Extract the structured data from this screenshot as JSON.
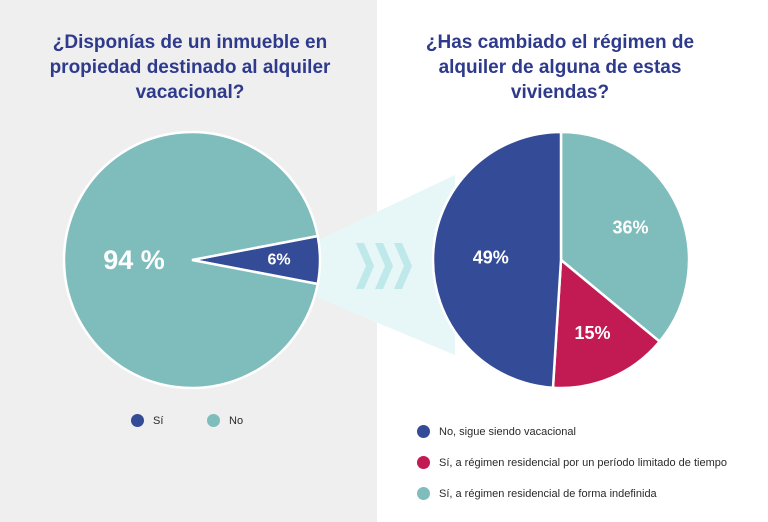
{
  "colors": {
    "navy": "#344b98",
    "teal": "#7fbdbc",
    "crimson": "#c21a52",
    "title": "#2e3a8c",
    "chevron": "#bfe8ea",
    "band": "#e7f6f7"
  },
  "left": {
    "title": "¿Disponías de un inmueble en propiedad destinado al alquiler vacacional?",
    "legend": [
      {
        "label": "Sí",
        "color": "#344b98"
      },
      {
        "label": "No",
        "color": "#7fbdbc"
      }
    ]
  },
  "right": {
    "title": "¿Has cambiado el régimen de alquiler de alguna de estas viviendas?",
    "legend": [
      {
        "label": "No, sigue siendo vacacional",
        "color": "#344b98"
      },
      {
        "label": "Sí, a régimen residencial por un período limitado de tiempo",
        "color": "#c21a52"
      },
      {
        "label": "Sí, a régimen residencial de forma indefinida",
        "color": "#7fbdbc"
      }
    ]
  },
  "chart_data": [
    {
      "type": "pie",
      "title": "¿Disponías de un inmueble en propiedad destinado al alquiler vacacional?",
      "categories": [
        "Sí",
        "No"
      ],
      "values": [
        6,
        94
      ],
      "data_labels": [
        "6%",
        "94 %"
      ],
      "colors": [
        "#344b98",
        "#7fbdbc"
      ]
    },
    {
      "type": "pie",
      "title": "¿Has cambiado el régimen de alquiler de alguna de estas viviendas?",
      "categories": [
        "No, sigue siendo vacacional",
        "Sí, a régimen residencial por un período limitado de tiempo",
        "Sí, a régimen residencial de forma indefinida"
      ],
      "values": [
        49,
        15,
        36
      ],
      "data_labels": [
        "49%",
        "15%",
        "36%"
      ],
      "colors": [
        "#344b98",
        "#c21a52",
        "#7fbdbc"
      ]
    }
  ]
}
